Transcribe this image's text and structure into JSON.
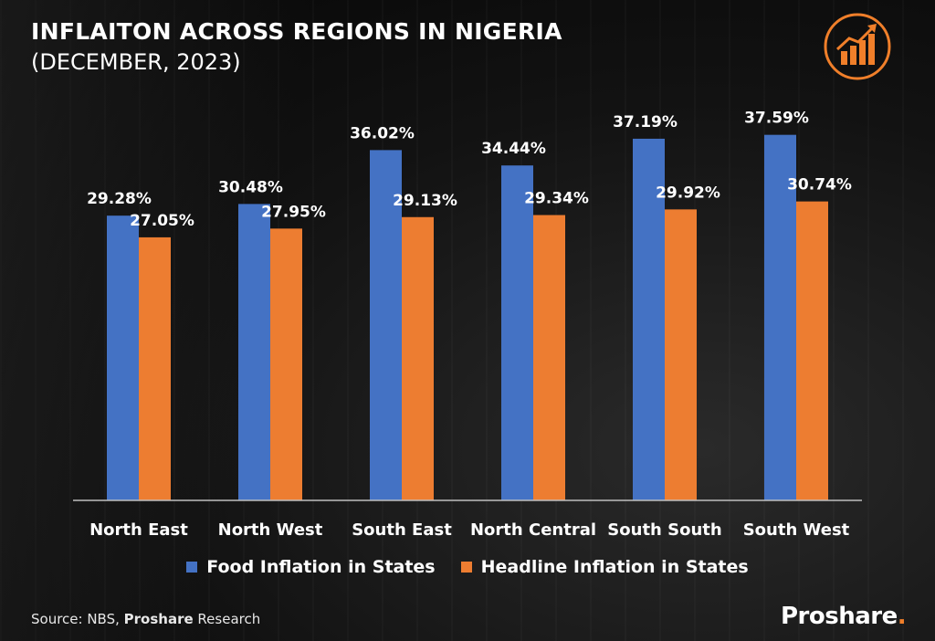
{
  "header": {
    "title": "INFLAITON ACROSS REGIONS IN NIGERIA",
    "subtitle": "(DECEMBER, 2023)"
  },
  "footer": {
    "source_prefix": "Source: NBS, ",
    "source_bold": "Proshare",
    "source_suffix": " Research",
    "brand": "Proshare",
    "brand_dot": "."
  },
  "icons": {
    "logo": "house-growth-chart-icon"
  },
  "colors": {
    "food": "#4472c4",
    "headline": "#ed7d31",
    "accent": "#f07f2a"
  },
  "chart_data": {
    "type": "bar",
    "categories": [
      "North East",
      "North West",
      "South East",
      "North Central",
      "South South",
      "South West"
    ],
    "series": [
      {
        "name": "Food Inflation in States",
        "values": [
          29.28,
          30.48,
          36.02,
          34.44,
          37.19,
          37.59
        ],
        "labels": [
          "29.28%",
          "30.48%",
          "36.02%",
          "34.44%",
          "37.19%",
          "37.59%"
        ]
      },
      {
        "name": "Headline Inflation in States",
        "values": [
          27.05,
          27.95,
          29.13,
          29.34,
          29.92,
          30.74
        ],
        "labels": [
          "27.05%",
          "27.95%",
          "29.13%",
          "29.34%",
          "29.92%",
          "30.74%"
        ]
      }
    ],
    "ylim": [
      0,
      41.8
    ],
    "legend": "bottom",
    "grid": false
  }
}
